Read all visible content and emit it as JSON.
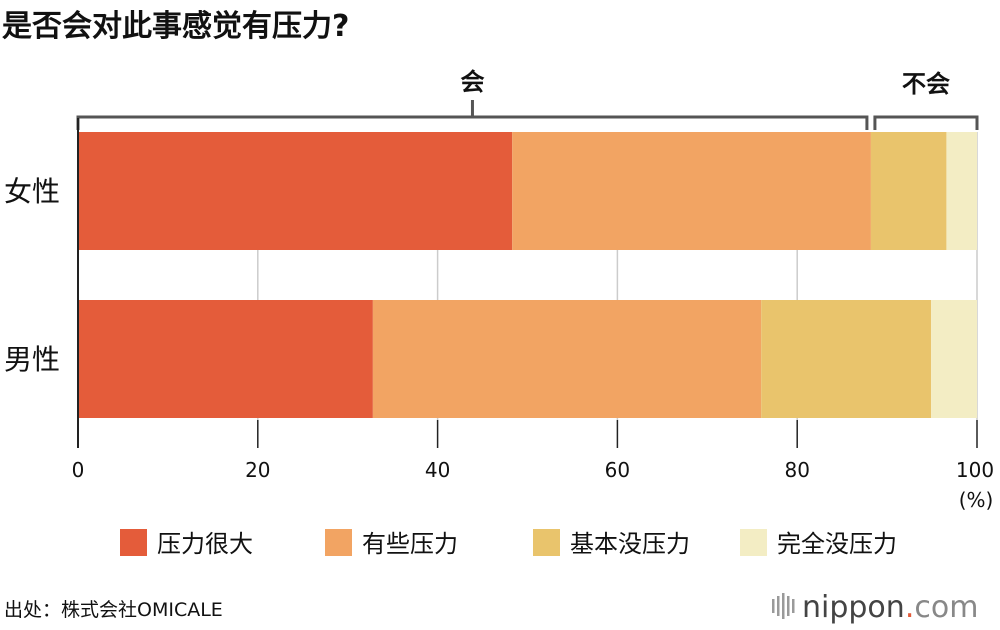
{
  "chart_data": {
    "type": "bar",
    "orientation": "horizontal",
    "stacked": true,
    "title": "是否会对此事感觉有压力?",
    "categories": [
      "女性",
      "男性"
    ],
    "series": [
      {
        "name": "压力很大",
        "color": "#e45c3a",
        "values": [
          48.3,
          32.8
        ]
      },
      {
        "name": "有些压力",
        "color": "#f2a463",
        "values": [
          39.9,
          43.2
        ]
      },
      {
        "name": "基本没压力",
        "color": "#e9c46c",
        "values": [
          8.4,
          18.9
        ]
      },
      {
        "name": "完全没压力",
        "color": "#f3edc4",
        "values": [
          3.4,
          5.1
        ]
      }
    ],
    "xlim": [
      0,
      100
    ],
    "xticks": [
      0,
      20,
      40,
      60,
      80,
      100
    ],
    "xunit": "(%)",
    "grid": true,
    "legend_position": "bottom",
    "brackets": [
      {
        "label": "会",
        "from": 0,
        "to": 88.2
      },
      {
        "label": "不会",
        "from": 88.2,
        "to": 100
      }
    ]
  },
  "source": "出处：株式会社OMICALE",
  "logo": {
    "name": "nippon",
    "dot": ".",
    "tld": "com"
  }
}
